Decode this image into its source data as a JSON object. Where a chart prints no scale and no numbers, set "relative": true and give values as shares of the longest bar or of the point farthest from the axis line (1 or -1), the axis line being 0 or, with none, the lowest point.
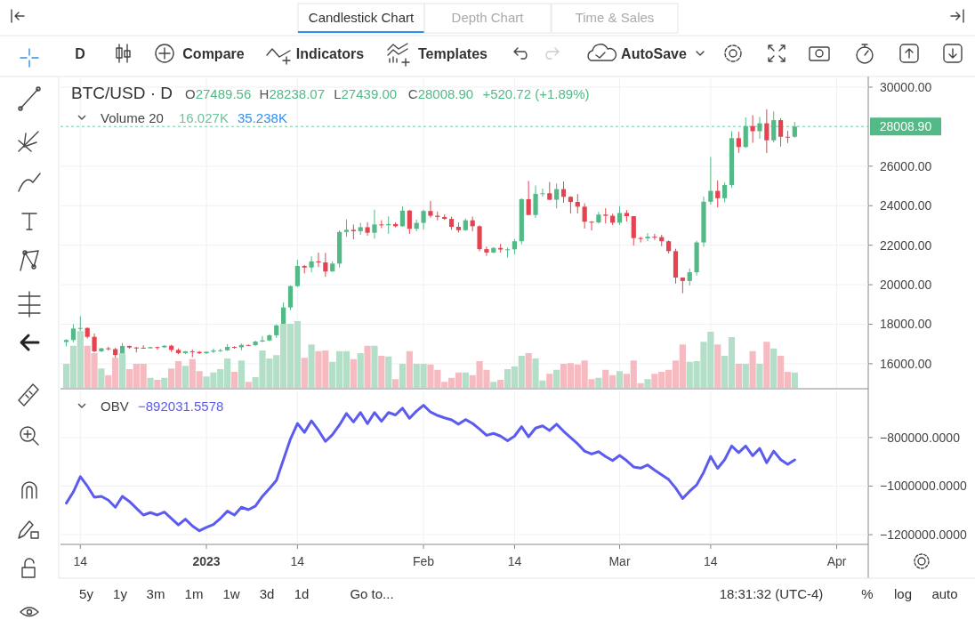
{
  "chart_data": [
    {
      "type": "candlestick",
      "title": "BTC/USD · D",
      "annotations": [
        "O27489.56",
        "H28238.07",
        "L27439.00",
        "C28008.90",
        "+520.72 (+1.89%)"
      ],
      "x": [
        "2022-12-12",
        "2022-12-13",
        "2022-12-14",
        "2022-12-15",
        "2022-12-16",
        "2022-12-17",
        "2022-12-18",
        "2022-12-19",
        "2022-12-20",
        "2022-12-21",
        "2022-12-22",
        "2022-12-23",
        "2022-12-24",
        "2022-12-25",
        "2022-12-26",
        "2022-12-27",
        "2022-12-28",
        "2022-12-29",
        "2022-12-30",
        "2022-12-31",
        "2023-01-01",
        "2023-01-02",
        "2023-01-03",
        "2023-01-04",
        "2023-01-05",
        "2023-01-06",
        "2023-01-07",
        "2023-01-08",
        "2023-01-09",
        "2023-01-10",
        "2023-01-11",
        "2023-01-12",
        "2023-01-13",
        "2023-01-14",
        "2023-01-15",
        "2023-01-16",
        "2023-01-17",
        "2023-01-18",
        "2023-01-19",
        "2023-01-20",
        "2023-01-21",
        "2023-01-22",
        "2023-01-23",
        "2023-01-24",
        "2023-01-25",
        "2023-01-26",
        "2023-01-27",
        "2023-01-28",
        "2023-01-29",
        "2023-01-30",
        "2023-01-31",
        "2023-02-01",
        "2023-02-02",
        "2023-02-03",
        "2023-02-04",
        "2023-02-05",
        "2023-02-06",
        "2023-02-07",
        "2023-02-08",
        "2023-02-09",
        "2023-02-10",
        "2023-02-11",
        "2023-02-12",
        "2023-02-13",
        "2023-02-14",
        "2023-02-15",
        "2023-02-16",
        "2023-02-17",
        "2023-02-18",
        "2023-02-19",
        "2023-02-20",
        "2023-02-21",
        "2023-02-22",
        "2023-02-23",
        "2023-02-24",
        "2023-02-25",
        "2023-02-26",
        "2023-02-27",
        "2023-02-28",
        "2023-03-01",
        "2023-03-02",
        "2023-03-03",
        "2023-03-04",
        "2023-03-05",
        "2023-03-06",
        "2023-03-07",
        "2023-03-08",
        "2023-03-09",
        "2023-03-10",
        "2023-03-11",
        "2023-03-12",
        "2023-03-13",
        "2023-03-14",
        "2023-03-15",
        "2023-03-16",
        "2023-03-17",
        "2023-03-18",
        "2023-03-19",
        "2023-03-20",
        "2023-03-21",
        "2023-03-22",
        "2023-03-23",
        "2023-03-24",
        "2023-03-25",
        "2023-03-26"
      ],
      "ohlc": [
        [
          17100,
          17240,
          16880,
          17200
        ],
        [
          17200,
          18000,
          17080,
          17780
        ],
        [
          17780,
          18400,
          17660,
          17810
        ],
        [
          17810,
          17850,
          17280,
          17360
        ],
        [
          17360,
          17530,
          16580,
          16630
        ],
        [
          16630,
          16800,
          16590,
          16780
        ],
        [
          16780,
          16860,
          16670,
          16740
        ],
        [
          16740,
          16810,
          16270,
          16440
        ],
        [
          16440,
          17050,
          16400,
          16900
        ],
        [
          16900,
          16910,
          16750,
          16820
        ],
        [
          16820,
          16860,
          16570,
          16810
        ],
        [
          16810,
          16940,
          16760,
          16780
        ],
        [
          16780,
          16860,
          16780,
          16840
        ],
        [
          16840,
          16870,
          16710,
          16830
        ],
        [
          16830,
          16940,
          16800,
          16910
        ],
        [
          16910,
          16960,
          16600,
          16700
        ],
        [
          16700,
          16780,
          16480,
          16540
        ],
        [
          16540,
          16640,
          16480,
          16630
        ],
        [
          16630,
          16720,
          16330,
          16600
        ],
        [
          16600,
          16650,
          16490,
          16530
        ],
        [
          16530,
          16620,
          16500,
          16610
        ],
        [
          16610,
          16760,
          16540,
          16670
        ],
        [
          16670,
          16760,
          16600,
          16680
        ],
        [
          16680,
          16990,
          16650,
          16850
        ],
        [
          16850,
          16880,
          16760,
          16830
        ],
        [
          16830,
          17020,
          16680,
          16950
        ],
        [
          16950,
          16970,
          16900,
          16940
        ],
        [
          16940,
          17170,
          16910,
          17120
        ],
        [
          17120,
          17400,
          17100,
          17180
        ],
        [
          17180,
          17490,
          17140,
          17440
        ],
        [
          17440,
          17990,
          17310,
          17940
        ],
        [
          17940,
          19100,
          17910,
          18850
        ],
        [
          18850,
          19960,
          18720,
          19930
        ],
        [
          19930,
          21260,
          19890,
          20950
        ],
        [
          20950,
          21000,
          20570,
          20870
        ],
        [
          20870,
          21440,
          20620,
          21180
        ],
        [
          21180,
          21620,
          20890,
          21130
        ],
        [
          21130,
          21610,
          20400,
          20670
        ],
        [
          20670,
          21190,
          20660,
          21070
        ],
        [
          21070,
          22750,
          20870,
          22670
        ],
        [
          22670,
          23300,
          22420,
          22780
        ],
        [
          22780,
          23050,
          22300,
          22710
        ],
        [
          22710,
          23130,
          22530,
          22910
        ],
        [
          22910,
          23160,
          22480,
          22630
        ],
        [
          22630,
          23800,
          22330,
          23050
        ],
        [
          23050,
          23270,
          22860,
          23010
        ],
        [
          23010,
          23460,
          22570,
          23070
        ],
        [
          23070,
          23160,
          22900,
          22960
        ],
        [
          22960,
          23960,
          22930,
          23750
        ],
        [
          23750,
          23790,
          22570,
          22830
        ],
        [
          22830,
          23300,
          22710,
          23130
        ],
        [
          23130,
          23800,
          22790,
          23730
        ],
        [
          23730,
          24240,
          23390,
          23490
        ],
        [
          23490,
          23700,
          23260,
          23430
        ],
        [
          23430,
          23560,
          23280,
          23330
        ],
        [
          23330,
          23440,
          22780,
          22930
        ],
        [
          22930,
          23150,
          22640,
          22760
        ],
        [
          22760,
          23350,
          22730,
          23260
        ],
        [
          23260,
          23450,
          22700,
          22960
        ],
        [
          22960,
          23010,
          21690,
          21800
        ],
        [
          21800,
          21930,
          21460,
          21630
        ],
        [
          21630,
          21910,
          21590,
          21860
        ],
        [
          21860,
          22070,
          21630,
          21780
        ],
        [
          21780,
          21880,
          21380,
          21790
        ],
        [
          21790,
          22320,
          21540,
          22200
        ],
        [
          22200,
          24370,
          22050,
          24330
        ],
        [
          24330,
          25250,
          23530,
          23530
        ],
        [
          23530,
          25020,
          23380,
          24600
        ],
        [
          24600,
          24870,
          24460,
          24630
        ],
        [
          24630,
          25200,
          24280,
          24300
        ],
        [
          24300,
          25120,
          23860,
          24840
        ],
        [
          24840,
          25230,
          24150,
          24450
        ],
        [
          24450,
          24480,
          23600,
          24190
        ],
        [
          24190,
          24590,
          23600,
          23950
        ],
        [
          23950,
          24120,
          22840,
          23190
        ],
        [
          23190,
          23220,
          22750,
          23150
        ],
        [
          23150,
          23690,
          23090,
          23550
        ],
        [
          23550,
          23870,
          23100,
          23490
        ],
        [
          23490,
          23590,
          23020,
          23140
        ],
        [
          23140,
          23980,
          23030,
          23630
        ],
        [
          23630,
          23780,
          23200,
          23470
        ],
        [
          23470,
          23480,
          21980,
          22360
        ],
        [
          22360,
          22430,
          22140,
          22350
        ],
        [
          22350,
          22620,
          22200,
          22430
        ],
        [
          22430,
          22570,
          22270,
          22410
        ],
        [
          22410,
          22530,
          21950,
          22200
        ],
        [
          22200,
          22240,
          21580,
          21700
        ],
        [
          21700,
          21820,
          20060,
          20360
        ],
        [
          20360,
          20360,
          19570,
          20190
        ],
        [
          20190,
          20820,
          19960,
          20630
        ],
        [
          20630,
          22220,
          20470,
          22140
        ],
        [
          22140,
          24460,
          21920,
          24200
        ],
        [
          24200,
          26470,
          24060,
          24750
        ],
        [
          24750,
          25280,
          23920,
          24380
        ],
        [
          24380,
          25180,
          24180,
          25050
        ],
        [
          25050,
          27770,
          24900,
          27420
        ],
        [
          27420,
          27740,
          26680,
          26970
        ],
        [
          26970,
          28470,
          26930,
          28030
        ],
        [
          28030,
          28580,
          27180,
          27770
        ],
        [
          27770,
          28490,
          27380,
          28170
        ],
        [
          28170,
          28880,
          26670,
          27310
        ],
        [
          27310,
          28770,
          27200,
          28330
        ],
        [
          28330,
          28430,
          26990,
          27490
        ],
        [
          27490,
          27790,
          27170,
          27480
        ],
        [
          27489.56,
          28238.07,
          27439.0,
          28008.9
        ]
      ],
      "xlim": [
        "2022-12-11T04:00",
        "2023-04-05T12:00"
      ],
      "xticks": [
        {
          "value": "2022-12-14",
          "label": null
        },
        {
          "value": "2023-01-01",
          "label": null
        },
        {
          "value": "2023-01-14",
          "label": null
        },
        {
          "value": "2023-02-01",
          "label": null
        },
        {
          "value": "2023-02-14",
          "label": null
        },
        {
          "value": "2023-03-01",
          "label": null
        },
        {
          "value": "2023-03-14",
          "label": null
        },
        {
          "value": "2023-04-01",
          "label": null
        }
      ],
      "ylim": [
        14780,
        30450
      ],
      "yticks": [
        {
          "value": 16000,
          "label": "16000.00"
        },
        {
          "value": 18000,
          "label": "18000.00"
        },
        {
          "value": 20000,
          "label": "20000.00"
        },
        {
          "value": 22000,
          "label": "22000.00"
        },
        {
          "value": 24000,
          "label": "24000.00"
        },
        {
          "value": 26000,
          "label": "26000.00"
        },
        {
          "value": 30000,
          "label": "30000.00"
        }
      ],
      "ref_lines": [
        {
          "axis": "y",
          "value": 28008.9,
          "label": "28008.90",
          "color": "#53b987",
          "line_style": "dashed"
        }
      ],
      "grid": true,
      "tick_labels": "y"
    },
    {
      "type": "bar",
      "title": "Volume 20",
      "annotations": [
        "16.027K",
        "35.238K"
      ],
      "relative": true,
      "tick_labels": false,
      "xlim": [
        "2022-12-11T04:00",
        "2023-04-05T12:00"
      ],
      "x": [
        "2022-12-12",
        "2022-12-13",
        "2022-12-14",
        "2022-12-15",
        "2022-12-16",
        "2022-12-17",
        "2022-12-18",
        "2022-12-19",
        "2022-12-20",
        "2022-12-21",
        "2022-12-22",
        "2022-12-23",
        "2022-12-24",
        "2022-12-25",
        "2022-12-26",
        "2022-12-27",
        "2022-12-28",
        "2022-12-29",
        "2022-12-30",
        "2022-12-31",
        "2023-01-01",
        "2023-01-02",
        "2023-01-03",
        "2023-01-04",
        "2023-01-05",
        "2023-01-06",
        "2023-01-07",
        "2023-01-08",
        "2023-01-09",
        "2023-01-10",
        "2023-01-11",
        "2023-01-12",
        "2023-01-13",
        "2023-01-14",
        "2023-01-15",
        "2023-01-16",
        "2023-01-17",
        "2023-01-18",
        "2023-01-19",
        "2023-01-20",
        "2023-01-21",
        "2023-01-22",
        "2023-01-23",
        "2023-01-24",
        "2023-01-25",
        "2023-01-26",
        "2023-01-27",
        "2023-01-28",
        "2023-01-29",
        "2023-01-30",
        "2023-01-31",
        "2023-02-01",
        "2023-02-02",
        "2023-02-03",
        "2023-02-04",
        "2023-02-05",
        "2023-02-06",
        "2023-02-07",
        "2023-02-08",
        "2023-02-09",
        "2023-02-10",
        "2023-02-11",
        "2023-02-12",
        "2023-02-13",
        "2023-02-14",
        "2023-02-15",
        "2023-02-16",
        "2023-02-17",
        "2023-02-18",
        "2023-02-19",
        "2023-02-20",
        "2023-02-21",
        "2023-02-22",
        "2023-02-23",
        "2023-02-24",
        "2023-02-25",
        "2023-02-26",
        "2023-02-27",
        "2023-02-28",
        "2023-03-01",
        "2023-03-02",
        "2023-03-03",
        "2023-03-04",
        "2023-03-05",
        "2023-03-06",
        "2023-03-07",
        "2023-03-08",
        "2023-03-09",
        "2023-03-10",
        "2023-03-11",
        "2023-03-12",
        "2023-03-13",
        "2023-03-14",
        "2023-03-15",
        "2023-03-16",
        "2023-03-17",
        "2023-03-18",
        "2023-03-19",
        "2023-03-20",
        "2023-03-21",
        "2023-03-22",
        "2023-03-23",
        "2023-03-24",
        "2023-03-25",
        "2023-03-26"
      ],
      "values": [
        0.36,
        0.63,
        0.85,
        0.63,
        0.52,
        0.29,
        0.19,
        0.45,
        0.52,
        0.28,
        0.36,
        0.36,
        0.15,
        0.12,
        0.15,
        0.29,
        0.4,
        0.33,
        0.43,
        0.25,
        0.17,
        0.23,
        0.28,
        0.44,
        0.24,
        0.41,
        0.09,
        0.16,
        0.56,
        0.44,
        0.49,
        0.96,
        0.96,
        1,
        0.45,
        0.65,
        0.55,
        0.56,
        0.39,
        0.55,
        0.55,
        0.43,
        0.52,
        0.63,
        0.63,
        0.48,
        0.47,
        0.13,
        0.36,
        0.55,
        0.36,
        0.36,
        0.35,
        0.27,
        0.09,
        0.15,
        0.23,
        0.23,
        0.19,
        0.4,
        0.27,
        0.09,
        0.12,
        0.28,
        0.32,
        0.48,
        0.52,
        0.44,
        0.11,
        0.21,
        0.27,
        0.36,
        0.37,
        0.35,
        0.41,
        0.13,
        0.15,
        0.27,
        0.19,
        0.25,
        0.21,
        0.41,
        0.07,
        0.13,
        0.21,
        0.24,
        0.27,
        0.41,
        0.65,
        0.39,
        0.4,
        0.69,
        0.84,
        0.65,
        0.48,
        0.76,
        0.36,
        0.36,
        0.55,
        0.36,
        0.69,
        0.59,
        0.48,
        0.24,
        0.23
      ],
      "colors": [
        "#b3dfc9",
        "#b3dfc9",
        "#b3dfc9",
        "#f6bbc1",
        "#f6bbc1",
        "#b3dfc9",
        "#f6bbc1",
        "#f6bbc1",
        "#b3dfc9",
        "#f6bbc1",
        "#f6bbc1",
        "#f6bbc1",
        "#b3dfc9",
        "#f6bbc1",
        "#b3dfc9",
        "#f6bbc1",
        "#f6bbc1",
        "#b3dfc9",
        "#f6bbc1",
        "#f6bbc1",
        "#b3dfc9",
        "#b3dfc9",
        "#b3dfc9",
        "#b3dfc9",
        "#f6bbc1",
        "#b3dfc9",
        "#f6bbc1",
        "#b3dfc9",
        "#b3dfc9",
        "#b3dfc9",
        "#b3dfc9",
        "#b3dfc9",
        "#b3dfc9",
        "#b3dfc9",
        "#f6bbc1",
        "#b3dfc9",
        "#f6bbc1",
        "#f6bbc1",
        "#b3dfc9",
        "#b3dfc9",
        "#b3dfc9",
        "#f6bbc1",
        "#b3dfc9",
        "#f6bbc1",
        "#b3dfc9",
        "#f6bbc1",
        "#b3dfc9",
        "#f6bbc1",
        "#b3dfc9",
        "#f6bbc1",
        "#b3dfc9",
        "#b3dfc9",
        "#f6bbc1",
        "#f6bbc1",
        "#f6bbc1",
        "#f6bbc1",
        "#f6bbc1",
        "#b3dfc9",
        "#f6bbc1",
        "#f6bbc1",
        "#f6bbc1",
        "#b3dfc9",
        "#f6bbc1",
        "#b3dfc9",
        "#b3dfc9",
        "#b3dfc9",
        "#f6bbc1",
        "#b3dfc9",
        "#b3dfc9",
        "#f6bbc1",
        "#b3dfc9",
        "#f6bbc1",
        "#f6bbc1",
        "#f6bbc1",
        "#f6bbc1",
        "#f6bbc1",
        "#b3dfc9",
        "#f6bbc1",
        "#f6bbc1",
        "#b3dfc9",
        "#f6bbc1",
        "#f6bbc1",
        "#f6bbc1",
        "#b3dfc9",
        "#f6bbc1",
        "#f6bbc1",
        "#f6bbc1",
        "#f6bbc1",
        "#f6bbc1",
        "#b3dfc9",
        "#b3dfc9",
        "#b3dfc9",
        "#b3dfc9",
        "#f6bbc1",
        "#b3dfc9",
        "#b3dfc9",
        "#f6bbc1",
        "#b3dfc9",
        "#f6bbc1",
        "#b3dfc9",
        "#f6bbc1",
        "#b3dfc9",
        "#f6bbc1",
        "#f6bbc1",
        "#b3dfc9"
      ]
    },
    {
      "type": "line",
      "title": "OBV",
      "annotations": [
        "−892031.5578"
      ],
      "x": [
        "2022-12-12",
        "2022-12-13",
        "2022-12-14",
        "2022-12-15",
        "2022-12-16",
        "2022-12-17",
        "2022-12-18",
        "2022-12-19",
        "2022-12-20",
        "2022-12-21",
        "2022-12-22",
        "2022-12-23",
        "2022-12-24",
        "2022-12-25",
        "2022-12-26",
        "2022-12-27",
        "2022-12-28",
        "2022-12-29",
        "2022-12-30",
        "2022-12-31",
        "2023-01-01",
        "2023-01-02",
        "2023-01-03",
        "2023-01-04",
        "2023-01-05",
        "2023-01-06",
        "2023-01-07",
        "2023-01-08",
        "2023-01-09",
        "2023-01-10",
        "2023-01-11",
        "2023-01-12",
        "2023-01-13",
        "2023-01-14",
        "2023-01-15",
        "2023-01-16",
        "2023-01-17",
        "2023-01-18",
        "2023-01-19",
        "2023-01-20",
        "2023-01-21",
        "2023-01-22",
        "2023-01-23",
        "2023-01-24",
        "2023-01-25",
        "2023-01-26",
        "2023-01-27",
        "2023-01-28",
        "2023-01-29",
        "2023-01-30",
        "2023-01-31",
        "2023-02-01",
        "2023-02-02",
        "2023-02-03",
        "2023-02-04",
        "2023-02-05",
        "2023-02-06",
        "2023-02-07",
        "2023-02-08",
        "2023-02-09",
        "2023-02-10",
        "2023-02-11",
        "2023-02-12",
        "2023-02-13",
        "2023-02-14",
        "2023-02-15",
        "2023-02-16",
        "2023-02-17",
        "2023-02-18",
        "2023-02-19",
        "2023-02-20",
        "2023-02-21",
        "2023-02-22",
        "2023-02-23",
        "2023-02-24",
        "2023-02-25",
        "2023-02-26",
        "2023-02-27",
        "2023-02-28",
        "2023-03-01",
        "2023-03-02",
        "2023-03-03",
        "2023-03-04",
        "2023-03-05",
        "2023-03-06",
        "2023-03-07",
        "2023-03-08",
        "2023-03-09",
        "2023-03-10",
        "2023-03-11",
        "2023-03-12",
        "2023-03-13",
        "2023-03-14",
        "2023-03-15",
        "2023-03-16",
        "2023-03-17",
        "2023-03-18",
        "2023-03-19",
        "2023-03-20",
        "2023-03-21",
        "2023-03-22",
        "2023-03-23",
        "2023-03-24",
        "2023-03-25",
        "2023-03-26"
      ],
      "series": [
        {
          "color": "#5b5bf0",
          "values": [
            -1070000,
            -1024000,
            -961000,
            -1000000,
            -1046000,
            -1042000,
            -1058000,
            -1087000,
            -1042000,
            -1063000,
            -1091000,
            -1119000,
            -1109000,
            -1119000,
            -1107000,
            -1133000,
            -1160000,
            -1136000,
            -1164000,
            -1184000,
            -1170000,
            -1158000,
            -1133000,
            -1103000,
            -1119000,
            -1087000,
            -1097000,
            -1082000,
            -1042000,
            -1010000,
            -976000,
            -891000,
            -806000,
            -742000,
            -779000,
            -731000,
            -770000,
            -816000,
            -788000,
            -748000,
            -701000,
            -736000,
            -697000,
            -743000,
            -697000,
            -733000,
            -697000,
            -707000,
            -679000,
            -721000,
            -691000,
            -667000,
            -695000,
            -709000,
            -719000,
            -727000,
            -745000,
            -726000,
            -742000,
            -765000,
            -791000,
            -783000,
            -794000,
            -813000,
            -794000,
            -755000,
            -797000,
            -761000,
            -752000,
            -771000,
            -745000,
            -774000,
            -800000,
            -826000,
            -856000,
            -868000,
            -858000,
            -878000,
            -895000,
            -874000,
            -895000,
            -921000,
            -926000,
            -913000,
            -934000,
            -953000,
            -973000,
            -1008000,
            -1051000,
            -1021000,
            -995000,
            -943000,
            -878000,
            -927000,
            -891000,
            -835000,
            -862000,
            -835000,
            -875000,
            -845000,
            -904000,
            -856000,
            -891000,
            -910000,
            -892000
          ]
        }
      ],
      "xlim": [
        "2022-12-11T04:00",
        "2023-04-05T12:00"
      ],
      "xticks": [
        {
          "value": "2022-12-14",
          "label": "14"
        },
        {
          "value": "2023-01-01",
          "label": "2023"
        },
        {
          "value": "2023-01-14",
          "label": "14"
        },
        {
          "value": "2023-02-01",
          "label": "Feb"
        },
        {
          "value": "2023-02-14",
          "label": "14"
        },
        {
          "value": "2023-03-01",
          "label": "Mar"
        },
        {
          "value": "2023-03-14",
          "label": "14"
        },
        {
          "value": "2023-04-01",
          "label": "Apr"
        }
      ],
      "ylim": [
        -1240000,
        -610000
      ],
      "yticks": [
        {
          "value": -1200000,
          "label": "−1200000.0000"
        },
        {
          "value": -1000000,
          "label": "−1000000.0000"
        },
        {
          "value": -800000,
          "label": "−800000.0000"
        }
      ],
      "grid": true
    },
    {
      "type": "other",
      "annotations": [
        "Candlestick Chart",
        "Depth Chart",
        "Time & Sales",
        "D",
        "Compare",
        "Indicators",
        "Templates",
        "AutoSave",
        "5y",
        "1y",
        "3m",
        "1m",
        "1w",
        "3d",
        "1d",
        "Go to...",
        "18:31:32 (UTC-4)",
        "%",
        "log",
        "auto"
      ]
    }
  ]
}
